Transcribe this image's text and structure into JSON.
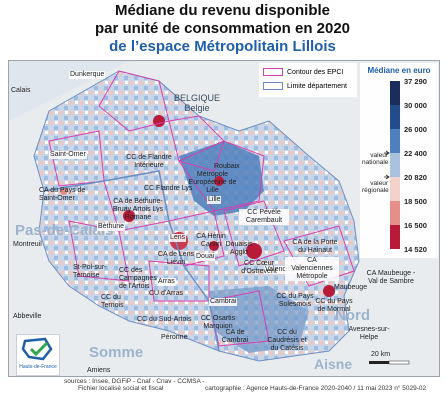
{
  "title": {
    "line1": "Médiane du revenu disponible",
    "line2": "par unité de consommation en 2020",
    "line3": "de l’espace Métropolitain Lillois"
  },
  "legend": {
    "epci_label": "Contour des EPCI",
    "epci_color": "#d63fb0",
    "dept_label": "Limite département",
    "dept_color": "#6b8fc4"
  },
  "scale": {
    "title": "Médiane en euro",
    "values": [
      "37 290",
      "30 000",
      "26 000",
      "22 400",
      "20 820",
      "18 500",
      "16 500",
      "14 520"
    ],
    "colors": [
      "#1b2d5a",
      "#244b8a",
      "#4f7fbd",
      "#a9c3de",
      "#f3d2cc",
      "#e58f8a",
      "#b81b3a"
    ],
    "national_note": "valeur nationale",
    "regional_note": "valeur régionale"
  },
  "regions": {
    "pas_de_calais": "Pas-de-Calais",
    "nord": "Nord",
    "somme": "Somme",
    "aisne": "Aisne"
  },
  "country": {
    "name": "BELGIQUE",
    "sub": "Belgie"
  },
  "towns": {
    "dunkerque": "Dunkerque",
    "calais": "Calais",
    "saint_omer": "Saint-Omer",
    "montreuil": "Montreuil",
    "st_pol": "St-Pol-sur-Ternoise",
    "bethune": "Béthune",
    "lens": "Lens",
    "lille": "Lille",
    "roubaix": "Roubaix",
    "douai": "Douai",
    "valenciennes": "Valenciennes",
    "arras": "Arras",
    "cambrai": "Cambrai",
    "maubeuge": "Maubeuge",
    "avesnes": "Avesnes-sur-Helpe",
    "abbeville": "Abbeville",
    "peronne": "Péronne",
    "amiens": "Amiens"
  },
  "epci": {
    "flandre_interieure": "CC de Flandre Intérieure",
    "pays_st_omer": "CA du Pays de Saint-Omer",
    "bethune_bruay": "CA de Béthune-Bruay Artois Lys Romane",
    "flandre_lys": "CC Flandre Lys",
    "mel": "Métropole Européenne de Lille",
    "pevele": "CC Pévèle Carembault",
    "lens_lievin": "CA de Lens Liévin",
    "henin": "CA Hénin Carvin",
    "porte_hainaut": "CA de la Porte du Hainaut",
    "ternois": "CC du Ternois",
    "campagnes_artois": "CC des Campagnes de l'Artois",
    "cc_arras": "CU d'Arras",
    "douaisis_agglo": "Douaisis Agglo",
    "coeur_ostrevent": "CC Cœur d'Ostrevent",
    "valenciennes_metro": "CA Valenciennes Métropole",
    "maubeuge_sambre": "CA Maubeuge - Val de Sambre",
    "pays_solesmois": "CC du Pays Solesmois",
    "pays_mormal": "CC du Pays de Mormal",
    "osartis": "CC Osartis Marquion",
    "sud_artois": "CC du Sud-Artois",
    "ca_cambrai": "CA de Cambrai",
    "caudresis": "CC du Caudrésis et du Catésis"
  },
  "scalebar": "20 km",
  "logo_text": "Hauts-de-France",
  "footer": {
    "sources": "sources : Insee, DGFiP - Cnaf - Cnav - CCMSA -",
    "sources2": "Fichier localisé social et fiscal",
    "credit": "cartographie : Agence Hauts-de-France 2020-2040 /  11 mai 2023 n° 5029-02"
  }
}
